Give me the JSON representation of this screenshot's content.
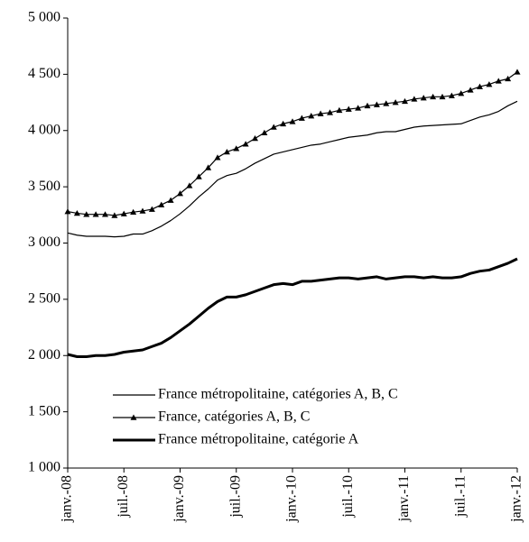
{
  "chart_data": {
    "type": "line",
    "categories": [
      "janv.-08",
      null,
      null,
      null,
      null,
      null,
      "juil.-08",
      null,
      null,
      null,
      null,
      null,
      "janv.-09",
      null,
      null,
      null,
      null,
      null,
      "juil.-09",
      null,
      null,
      null,
      null,
      null,
      "janv.-10",
      null,
      null,
      null,
      null,
      null,
      "juil.-10",
      null,
      null,
      null,
      null,
      null,
      "janv.-11",
      null,
      null,
      null,
      null,
      null,
      "juil.-11",
      null,
      null,
      null,
      null,
      null,
      "janv.-12"
    ],
    "series": [
      {
        "name": "France métropolitaine, catégories A, B, C",
        "color": "#000000",
        "linewidth": 1.2,
        "marker": "none",
        "values": [
          3090,
          3070,
          3060,
          3060,
          3060,
          3055,
          3060,
          3080,
          3080,
          3110,
          3150,
          3200,
          3260,
          3330,
          3410,
          3480,
          3560,
          3600,
          3620,
          3660,
          3710,
          3750,
          3790,
          3810,
          3830,
          3850,
          3870,
          3880,
          3900,
          3920,
          3940,
          3950,
          3960,
          3980,
          3990,
          3990,
          4010,
          4030,
          4040,
          4045,
          4050,
          4055,
          4060,
          4090,
          4120,
          4140,
          4170,
          4220,
          4260
        ]
      },
      {
        "name": "France, catégories A, B, C",
        "color": "#000000",
        "linewidth": 1.2,
        "marker": "triangle",
        "values": [
          3280,
          3265,
          3255,
          3255,
          3255,
          3245,
          3260,
          3275,
          3285,
          3300,
          3340,
          3380,
          3440,
          3510,
          3590,
          3670,
          3760,
          3810,
          3840,
          3880,
          3930,
          3980,
          4030,
          4060,
          4080,
          4110,
          4130,
          4150,
          4160,
          4180,
          4190,
          4200,
          4220,
          4230,
          4240,
          4250,
          4260,
          4280,
          4290,
          4300,
          4300,
          4310,
          4330,
          4360,
          4390,
          4410,
          4440,
          4460,
          4520
        ]
      },
      {
        "name": "France métropolitaine, catégorie A",
        "color": "#000000",
        "linewidth": 3,
        "marker": "none",
        "values": [
          2010,
          1990,
          1990,
          2000,
          2000,
          2010,
          2030,
          2040,
          2050,
          2080,
          2110,
          2160,
          2220,
          2280,
          2350,
          2420,
          2480,
          2520,
          2520,
          2540,
          2570,
          2600,
          2630,
          2640,
          2630,
          2660,
          2660,
          2670,
          2680,
          2690,
          2690,
          2680,
          2690,
          2700,
          2680,
          2690,
          2700,
          2700,
          2690,
          2700,
          2690,
          2690,
          2700,
          2730,
          2750,
          2760,
          2790,
          2820,
          2860
        ]
      }
    ],
    "ylim": [
      1000,
      5000
    ],
    "yticks": [
      {
        "value": 1000,
        "label": "1 000"
      },
      {
        "value": 1500,
        "label": "1 500"
      },
      {
        "value": 2000,
        "label": "2 000"
      },
      {
        "value": 2500,
        "label": "2 500"
      },
      {
        "value": 3000,
        "label": "3 000"
      },
      {
        "value": 3500,
        "label": "3 500"
      },
      {
        "value": 4000,
        "label": "4 000"
      },
      {
        "value": 4500,
        "label": "4 500"
      },
      {
        "value": 5000,
        "label": "5 000"
      }
    ],
    "grid": false,
    "legend": "lower-left"
  }
}
